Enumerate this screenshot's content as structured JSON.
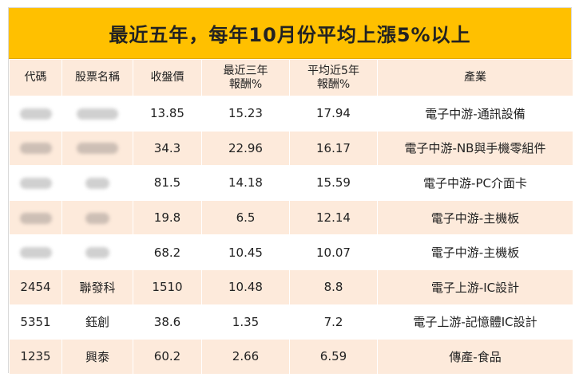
{
  "title": "最近五年，每年10月份平均上漲5%以上",
  "headers": {
    "code": "代碼",
    "name": "股票名稱",
    "close": "收盤價",
    "ret3_line1": "最近三年",
    "ret3_line2": "報酬%",
    "avg5_line1": "平均近5年",
    "avg5_line2": "報酬%",
    "industry": "產業"
  },
  "rows": [
    {
      "code": "",
      "name": "",
      "close": "13.85",
      "ret3": "15.23",
      "avg5": "17.94",
      "industry": "電子中游-通訊設備",
      "redacted": true
    },
    {
      "code": "",
      "name": "",
      "close": "34.3",
      "ret3": "22.96",
      "avg5": "16.17",
      "industry": "電子中游-NB與手機零組件",
      "redacted": true
    },
    {
      "code": "",
      "name": "",
      "close": "81.5",
      "ret3": "14.18",
      "avg5": "15.59",
      "industry": "電子中游-PC介面卡",
      "redacted": true
    },
    {
      "code": "",
      "name": "",
      "close": "19.8",
      "ret3": "6.5",
      "avg5": "12.14",
      "industry": "電子中游-主機板",
      "redacted": true
    },
    {
      "code": "",
      "name": "",
      "close": "68.2",
      "ret3": "10.45",
      "avg5": "10.07",
      "industry": "電子中游-主機板",
      "redacted": true
    },
    {
      "code": "2454",
      "name": "聯發科",
      "close": "1510",
      "ret3": "10.48",
      "avg5": "8.8",
      "industry": "電子上游-IC設計",
      "redacted": false
    },
    {
      "code": "5351",
      "name": "鈺創",
      "close": "38.6",
      "ret3": "1.35",
      "avg5": "7.2",
      "industry": "電子上游-記憶體IC設計",
      "redacted": false
    },
    {
      "code": "1235",
      "name": "興泰",
      "close": "60.2",
      "ret3": "2.66",
      "avg5": "6.59",
      "industry": "傳產-食品",
      "redacted": false
    }
  ],
  "colors": {
    "title_bg": "#ffc000",
    "band_bg": "#fdeadb",
    "row_bg": "#ffffff"
  }
}
